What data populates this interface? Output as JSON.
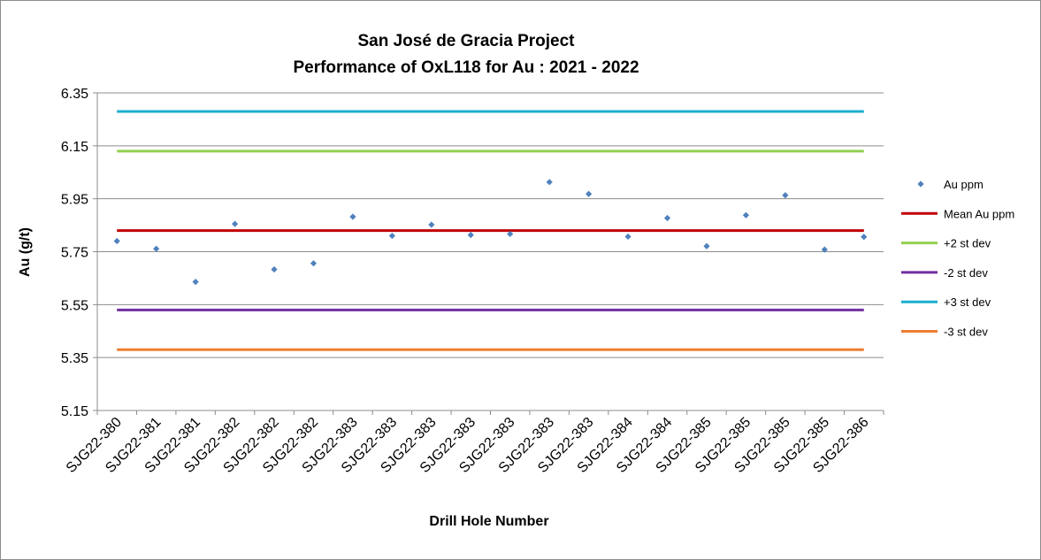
{
  "chart_data": {
    "type": "scatter",
    "title": [
      "San José de Gracia Project",
      "Performance of OxL118 for Au : 2021 - 2022"
    ],
    "xlabel": "Drill Hole Number",
    "ylabel": "Au (g/t)",
    "ylim": [
      5.15,
      6.35
    ],
    "yticks": [
      "6.35",
      "6.15",
      "5.95",
      "5.75",
      "5.55",
      "5.35",
      "5.15"
    ],
    "categories": [
      "SJG22-380",
      "SJG22-381",
      "SJG22-381",
      "SJG22-382",
      "SJG22-382",
      "SJG22-382",
      "SJG22-383",
      "SJG22-383",
      "SJG22-383",
      "SJG22-383",
      "SJG22-383",
      "SJG22-383",
      "SJG22-383",
      "SJG22-384",
      "SJG22-384",
      "SJG22-385",
      "SJG22-385",
      "SJG22-385",
      "SJG22-385",
      "SJG22-386"
    ],
    "series": [
      {
        "name": "Au ppm",
        "kind": "points",
        "color": "#4f81bd",
        "values": [
          5.79,
          5.761,
          5.636,
          5.855,
          5.683,
          5.706,
          5.882,
          5.81,
          5.852,
          5.813,
          5.817,
          6.013,
          5.968,
          5.807,
          5.877,
          5.771,
          5.888,
          5.963,
          5.758,
          5.806
        ]
      },
      {
        "name": "Mean Au ppm",
        "kind": "line",
        "color": "#c00000",
        "value": 5.83
      },
      {
        "name": "+2 st dev",
        "kind": "line",
        "color": "#92d050",
        "value": 6.13
      },
      {
        "name": "-2 st dev",
        "kind": "line",
        "color": "#7030a0",
        "value": 5.53
      },
      {
        "name": "+3 st dev",
        "kind": "line",
        "color": "#1aaecf",
        "value": 6.28
      },
      {
        "name": "-3 st dev",
        "kind": "line",
        "color": "#ed7d31",
        "value": 5.38
      }
    ],
    "grid": true,
    "legend_position": "right"
  }
}
